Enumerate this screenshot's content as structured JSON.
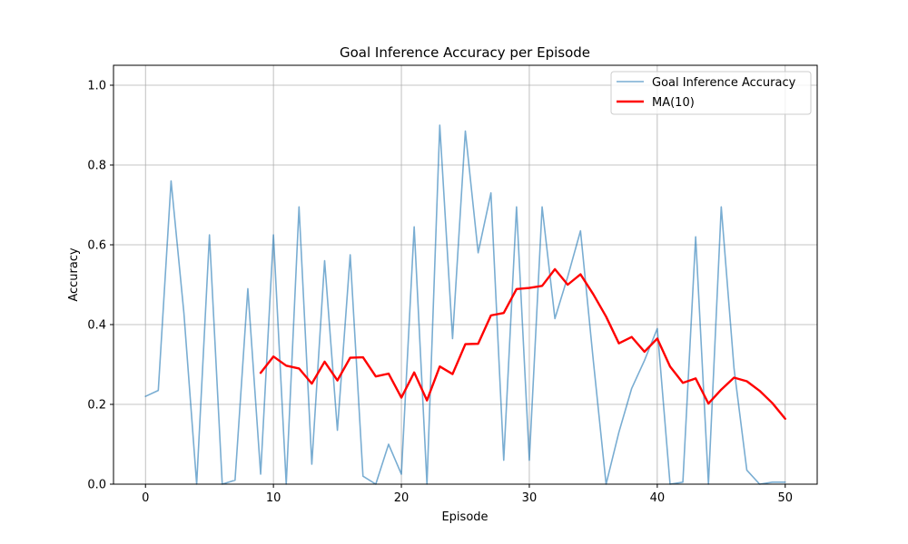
{
  "chart_data": {
    "type": "line",
    "title": "Goal Inference Accuracy per Episode",
    "xlabel": "Episode",
    "ylabel": "Accuracy",
    "xlim": [
      -2.5,
      52.5
    ],
    "ylim": [
      0,
      1.05
    ],
    "xticks": [
      0,
      10,
      20,
      30,
      40,
      50
    ],
    "yticks": [
      0.0,
      0.2,
      0.4,
      0.6,
      0.8,
      1.0
    ],
    "xtick_labels": [
      "0",
      "10",
      "20",
      "30",
      "40",
      "50"
    ],
    "ytick_labels": [
      "0.0",
      "0.2",
      "0.4",
      "0.6",
      "0.8",
      "1.0"
    ],
    "grid": true,
    "legend_position": "top-right",
    "series": [
      {
        "name": "Goal Inference Accuracy",
        "color": "#1f77b4",
        "opacity": 0.6,
        "x": [
          0,
          1,
          2,
          3,
          4,
          5,
          6,
          7,
          8,
          9,
          10,
          11,
          12,
          13,
          14,
          15,
          16,
          17,
          18,
          19,
          20,
          21,
          22,
          23,
          24,
          25,
          26,
          27,
          28,
          29,
          30,
          31,
          32,
          33,
          34,
          35,
          36,
          37,
          38,
          39,
          40,
          41,
          42,
          43,
          44,
          45,
          46,
          47,
          48,
          49,
          50
        ],
        "values": [
          0.22,
          0.235,
          0.76,
          0.43,
          0.0,
          0.625,
          0.0,
          0.01,
          0.49,
          0.025,
          0.625,
          0.0,
          0.695,
          0.05,
          0.56,
          0.135,
          0.575,
          0.02,
          0.0,
          0.1,
          0.025,
          0.645,
          0.0,
          0.9,
          0.365,
          0.885,
          0.58,
          0.73,
          0.06,
          0.695,
          0.06,
          0.695,
          0.415,
          0.52,
          0.635,
          0.31,
          0.0,
          0.13,
          0.24,
          0.31,
          0.39,
          0.0,
          0.005,
          0.62,
          0.0,
          0.695,
          0.29,
          0.035,
          0.0,
          0.005,
          0.005
        ]
      },
      {
        "name": "MA(10)",
        "color": "#ff0000",
        "x": [
          9,
          10,
          11,
          12,
          13,
          14,
          15,
          16,
          17,
          18,
          19,
          20,
          21,
          22,
          23,
          24,
          25,
          26,
          27,
          28,
          29,
          30,
          31,
          32,
          33,
          34,
          35,
          36,
          37,
          38,
          39,
          40,
          41,
          42,
          43,
          44,
          45,
          46,
          47,
          48,
          49,
          50
        ],
        "values": [
          0.279,
          0.32,
          0.297,
          0.29,
          0.252,
          0.307,
          0.26,
          0.317,
          0.318,
          0.27,
          0.277,
          0.217,
          0.28,
          0.21,
          0.295,
          0.276,
          0.351,
          0.352,
          0.423,
          0.429,
          0.489,
          0.492,
          0.497,
          0.539,
          0.5,
          0.526,
          0.476,
          0.42,
          0.353,
          0.369,
          0.332,
          0.365,
          0.295,
          0.254,
          0.265,
          0.202,
          0.237,
          0.267,
          0.258,
          0.234,
          0.203,
          0.164
        ]
      }
    ]
  }
}
